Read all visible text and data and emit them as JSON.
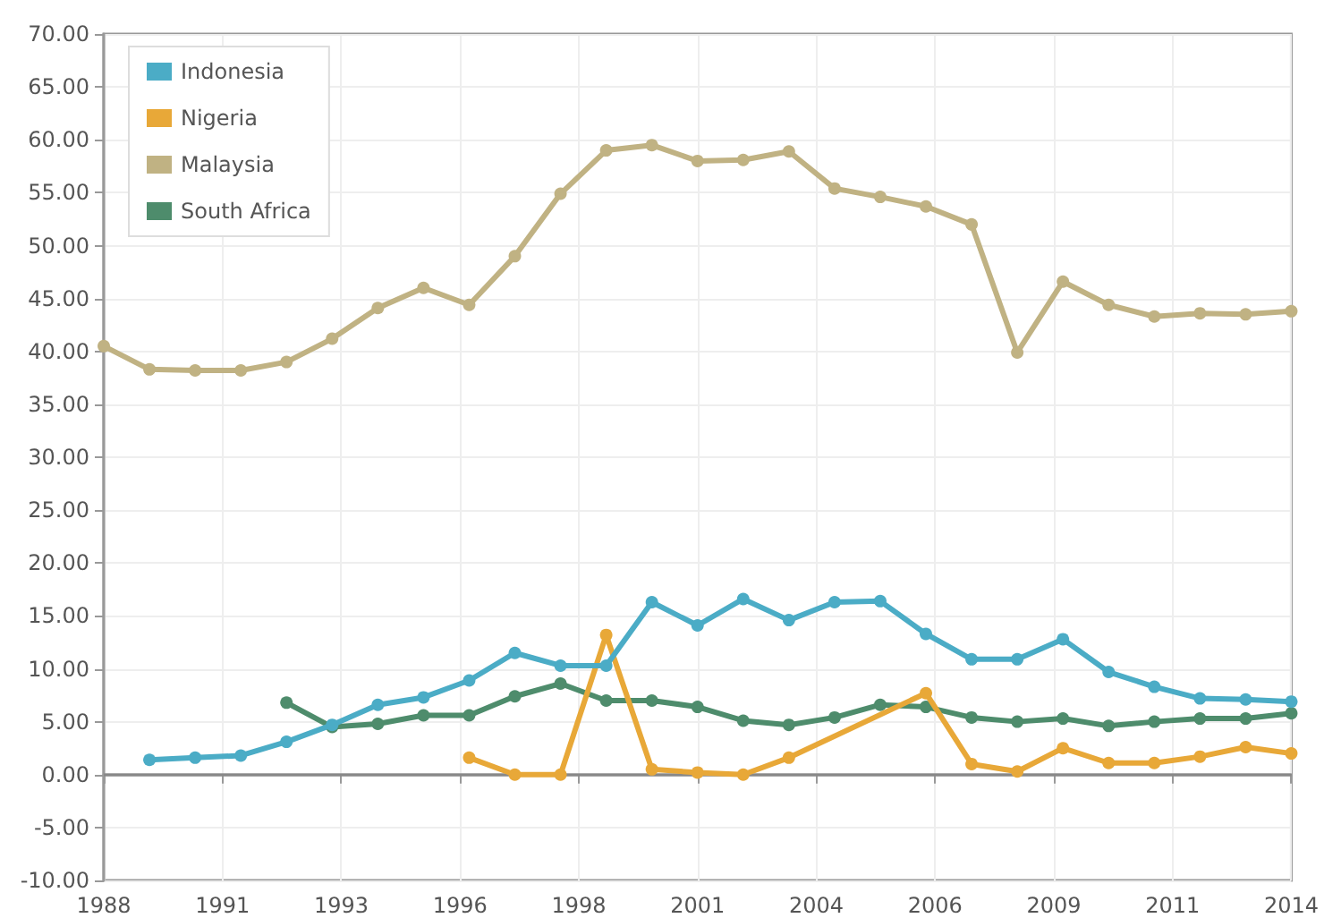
{
  "chart_data": {
    "type": "line",
    "xlim": [
      1988,
      2014
    ],
    "xticks": [
      {
        "value": 1988,
        "label": "1988"
      },
      {
        "value": 1990.6,
        "label": "1991"
      },
      {
        "value": 1993.2,
        "label": "1993"
      },
      {
        "value": 1995.8,
        "label": "1996"
      },
      {
        "value": 1998.4,
        "label": "1998"
      },
      {
        "value": 2001,
        "label": "2001"
      },
      {
        "value": 2003.6,
        "label": "2004"
      },
      {
        "value": 2006.2,
        "label": "2006"
      },
      {
        "value": 2008.8,
        "label": "2009"
      },
      {
        "value": 2011.4,
        "label": "2011"
      },
      {
        "value": 2014,
        "label": "2014"
      }
    ],
    "ylim": [
      -10,
      70
    ],
    "yticks": [
      {
        "value": -10,
        "label": "-10.00"
      },
      {
        "value": -5,
        "label": "-5.00"
      },
      {
        "value": 0,
        "label": "0.00"
      },
      {
        "value": 5,
        "label": "5.00"
      },
      {
        "value": 10,
        "label": "10.00"
      },
      {
        "value": 15,
        "label": "15.00"
      },
      {
        "value": 20,
        "label": "20.00"
      },
      {
        "value": 25,
        "label": "25.00"
      },
      {
        "value": 30,
        "label": "30.00"
      },
      {
        "value": 35,
        "label": "35.00"
      },
      {
        "value": 40,
        "label": "40.00"
      },
      {
        "value": 45,
        "label": "45.00"
      },
      {
        "value": 50,
        "label": "50.00"
      },
      {
        "value": 55,
        "label": "55.00"
      },
      {
        "value": 60,
        "label": "60.00"
      },
      {
        "value": 65,
        "label": "65.00"
      },
      {
        "value": 70,
        "label": "70.00"
      }
    ],
    "series": [
      {
        "name": "Indonesia",
        "color": "#4bacc6",
        "x": [
          1989,
          1990,
          1991,
          1992,
          1993,
          1994,
          1995,
          1996,
          1997,
          1998,
          1999,
          2000,
          2001,
          2002,
          2003,
          2004,
          2005,
          2006,
          2007,
          2008,
          2009,
          2010,
          2011,
          2012,
          2013,
          2014
        ],
        "values": [
          1.4,
          1.6,
          1.8,
          3.1,
          4.7,
          6.6,
          7.3,
          8.9,
          11.5,
          10.3,
          10.3,
          16.3,
          14.1,
          16.6,
          14.6,
          16.3,
          16.4,
          13.3,
          10.9,
          10.9,
          12.8,
          9.7,
          8.3,
          7.2,
          7.1,
          6.9
        ]
      },
      {
        "name": "Nigeria",
        "color": "#e8a838",
        "x": [
          1996,
          1997,
          1998,
          1999,
          2000,
          2001,
          2002,
          2003,
          2006,
          2007,
          2008,
          2009,
          2010,
          2011,
          2012,
          2013,
          2014
        ],
        "values": [
          1.6,
          0.0,
          0.0,
          13.2,
          0.5,
          0.2,
          0.0,
          1.6,
          7.7,
          1.0,
          0.3,
          2.5,
          1.1,
          1.1,
          1.7,
          2.6,
          2.0
        ]
      },
      {
        "name": "Malaysia",
        "color": "#c0b283",
        "x": [
          1988,
          1989,
          1990,
          1991,
          1992,
          1993,
          1994,
          1995,
          1996,
          1997,
          1998,
          1999,
          2000,
          2001,
          2002,
          2003,
          2004,
          2005,
          2006,
          2007,
          2008,
          2009,
          2010,
          2011,
          2012,
          2013,
          2014
        ],
        "values": [
          40.5,
          38.3,
          38.2,
          38.2,
          39.0,
          41.2,
          44.1,
          46.0,
          44.4,
          49.0,
          54.9,
          59.0,
          59.5,
          58.0,
          58.1,
          58.9,
          55.4,
          54.6,
          53.7,
          52.0,
          39.9,
          46.6,
          44.4,
          43.3,
          43.6,
          43.5,
          43.8
        ]
      },
      {
        "name": "South Africa",
        "color": "#4e8c6c",
        "x": [
          1992,
          1993,
          1994,
          1995,
          1996,
          1997,
          1998,
          1999,
          2000,
          2001,
          2002,
          2003,
          2004,
          2005,
          2006,
          2007,
          2008,
          2009,
          2010,
          2011,
          2012,
          2013,
          2014
        ],
        "values": [
          6.8,
          4.5,
          4.8,
          5.6,
          5.6,
          7.4,
          8.6,
          7.0,
          7.0,
          6.4,
          5.1,
          4.7,
          5.4,
          6.6,
          6.4,
          5.4,
          5.0,
          5.3,
          4.6,
          5.0,
          5.3,
          5.3,
          5.8
        ]
      }
    ],
    "ref_lines": [
      {
        "axis": "y",
        "value": 0,
        "color": "#888888"
      }
    ],
    "grid": true,
    "legend": "top left",
    "marker": "circle",
    "line_style": "solid"
  }
}
